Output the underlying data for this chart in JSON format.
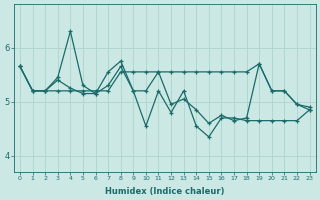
{
  "xlabel": "Humidex (Indice chaleur)",
  "ylabel": "",
  "xlim": [
    -0.5,
    23.5
  ],
  "ylim": [
    3.7,
    6.8
  ],
  "xticks": [
    0,
    1,
    2,
    3,
    4,
    5,
    6,
    7,
    8,
    9,
    10,
    11,
    12,
    13,
    14,
    15,
    16,
    17,
    18,
    19,
    20,
    21,
    22,
    23
  ],
  "yticks": [
    4,
    5,
    6
  ],
  "background_color": "#cce8e4",
  "line_color": "#1a6b6b",
  "grid_color": "#b0d8d0",
  "line1_x": [
    0,
    1,
    2,
    3,
    4,
    5,
    6,
    7,
    8,
    9,
    10,
    11,
    12,
    13,
    14,
    15,
    16,
    17,
    18,
    19,
    20,
    21,
    22,
    23
  ],
  "line1_y": [
    5.65,
    5.2,
    5.2,
    5.2,
    5.2,
    5.2,
    5.2,
    5.2,
    5.55,
    5.55,
    5.55,
    5.55,
    5.55,
    5.55,
    5.55,
    5.55,
    5.55,
    5.55,
    5.55,
    5.7,
    5.2,
    5.2,
    4.95,
    4.9
  ],
  "line2_x": [
    0,
    1,
    2,
    3,
    4,
    5,
    6,
    7,
    8,
    9,
    10,
    11,
    12,
    13,
    14,
    15,
    16,
    17,
    18,
    19,
    20,
    21,
    22,
    23
  ],
  "line2_y": [
    5.65,
    5.2,
    5.2,
    5.45,
    6.3,
    5.3,
    5.15,
    5.55,
    5.75,
    5.2,
    5.2,
    5.55,
    4.95,
    5.05,
    4.85,
    4.6,
    4.75,
    4.65,
    4.7,
    5.7,
    5.2,
    5.2,
    4.95,
    4.85
  ],
  "line3_x": [
    0,
    1,
    2,
    3,
    4,
    5,
    6,
    7,
    8,
    9,
    10,
    11,
    12,
    13,
    14,
    15,
    16,
    17,
    18,
    19,
    20,
    21,
    22,
    23
  ],
  "line3_y": [
    5.65,
    5.2,
    5.2,
    5.4,
    5.25,
    5.15,
    5.15,
    5.3,
    5.65,
    5.2,
    4.55,
    5.2,
    4.8,
    5.2,
    4.55,
    4.35,
    4.7,
    4.7,
    4.65,
    4.65,
    4.65,
    4.65,
    4.65,
    4.85
  ]
}
